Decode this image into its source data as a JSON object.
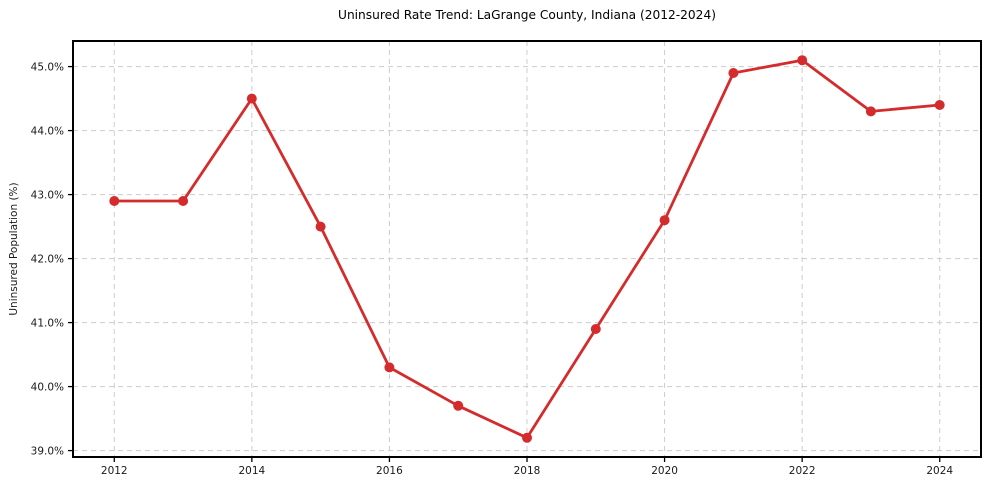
{
  "chart_data": {
    "type": "line",
    "title": "Uninsured Rate Trend: LaGrange County, Indiana (2012-2024)",
    "xlabel": "",
    "ylabel": "Uninsured Population (%)",
    "x": [
      2012,
      2013,
      2014,
      2015,
      2016,
      2017,
      2018,
      2019,
      2020,
      2021,
      2022,
      2023,
      2024
    ],
    "series": [
      {
        "name": "Uninsured rate",
        "values": [
          42.9,
          42.9,
          44.5,
          42.5,
          40.3,
          39.7,
          39.2,
          40.9,
          42.6,
          44.9,
          45.1,
          44.3,
          44.4
        ]
      }
    ],
    "xlim": [
      2011.4,
      2024.6
    ],
    "ylim": [
      38.9,
      45.4
    ],
    "xticks": [
      2012,
      2014,
      2016,
      2018,
      2020,
      2022,
      2024
    ],
    "xtick_labels": [
      "2012",
      "2014",
      "2016",
      "2018",
      "2020",
      "2022",
      "2024"
    ],
    "yticks": [
      39.0,
      40.0,
      41.0,
      42.0,
      43.0,
      44.0,
      45.0
    ],
    "ytick_labels": [
      "39.0%",
      "40.0%",
      "41.0%",
      "42.0%",
      "43.0%",
      "44.0%",
      "45.0%"
    ],
    "grid": true,
    "legend": null,
    "colors": {
      "line": "#d42c2c",
      "marker": "#d42c2c",
      "grid": "#cccccc",
      "axis": "#000000",
      "text": "#1a1a1a",
      "background": "#ffffff"
    }
  }
}
